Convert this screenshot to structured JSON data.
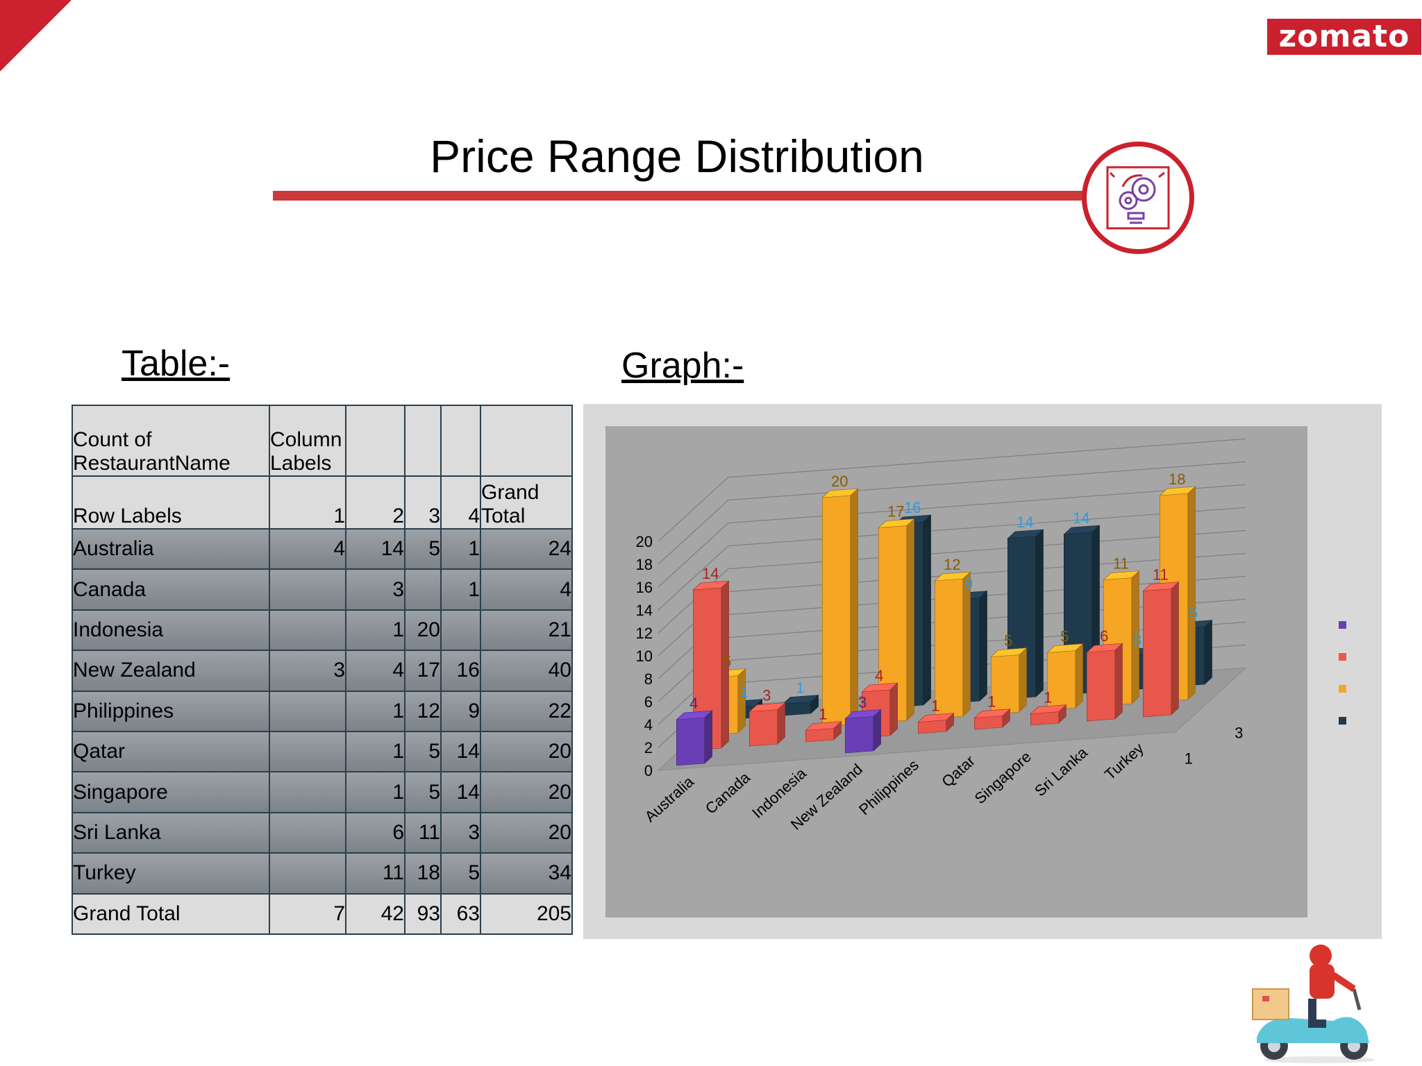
{
  "brand": {
    "name": "zomato",
    "color": "#cb202d"
  },
  "page": {
    "title": "Price Range Distribution"
  },
  "sections": {
    "table_label": "Table:-",
    "graph_label": "Graph:-"
  },
  "table": {
    "header": {
      "c0": "Count of RestaurantName",
      "c1": "Column Labels"
    },
    "subheader": {
      "c0": "Row Labels",
      "c1": "1",
      "c2": "2",
      "c3": "3",
      "c4": "4",
      "c5": "Grand Total"
    },
    "rows": [
      {
        "label": "Australia",
        "c1": "4",
        "c2": "14",
        "c3": "5",
        "c4": "1",
        "total": "24"
      },
      {
        "label": "Canada",
        "c1": "",
        "c2": "3",
        "c3": "",
        "c4": "1",
        "total": "4"
      },
      {
        "label": "Indonesia",
        "c1": "",
        "c2": "1",
        "c3": "20",
        "c4": "",
        "total": "21"
      },
      {
        "label": "New Zealand",
        "c1": "3",
        "c2": "4",
        "c3": "17",
        "c4": "16",
        "total": "40"
      },
      {
        "label": "Philippines",
        "c1": "",
        "c2": "1",
        "c3": "12",
        "c4": "9",
        "total": "22"
      },
      {
        "label": "Qatar",
        "c1": "",
        "c2": "1",
        "c3": "5",
        "c4": "14",
        "total": "20"
      },
      {
        "label": "Singapore",
        "c1": "",
        "c2": "1",
        "c3": "5",
        "c4": "14",
        "total": "20"
      },
      {
        "label": "Sri Lanka",
        "c1": "",
        "c2": "6",
        "c3": "11",
        "c4": "3",
        "total": "20"
      },
      {
        "label": "Turkey",
        "c1": "",
        "c2": "11",
        "c3": "18",
        "c4": "5",
        "total": "34"
      }
    ],
    "grand_total": {
      "label": "Grand Total",
      "c1": "7",
      "c2": "42",
      "c3": "93",
      "c4": "63",
      "total": "205"
    }
  },
  "chart_data": {
    "type": "bar",
    "style": "3d-clustered-column",
    "categories": [
      "Australia",
      "Canada",
      "Indonesia",
      "New Zealand",
      "Philippines",
      "Qatar",
      "Singapore",
      "Sri Lanka",
      "Turkey"
    ],
    "y_ticks": [
      "0",
      "2",
      "4",
      "6",
      "8",
      "10",
      "12",
      "14",
      "16",
      "18",
      "20"
    ],
    "ylim": [
      0,
      20
    ],
    "depth_labels": [
      "1",
      "3"
    ],
    "grid": true,
    "legend": "right",
    "series": [
      {
        "color": "#6a3fb5",
        "values": [
          4,
          null,
          null,
          3,
          null,
          null,
          null,
          null,
          null
        ],
        "labels": [
          "4",
          "",
          "",
          "3",
          "",
          "",
          "",
          "",
          ""
        ],
        "label_color": "#3d2a78"
      },
      {
        "color": "#e8574b",
        "values": [
          14,
          3,
          1,
          4,
          1,
          1,
          1,
          6,
          11
        ],
        "labels": [
          "14",
          "3",
          "1",
          "4",
          "1",
          "1",
          "1",
          "6",
          "11"
        ],
        "label_color": "#a82020"
      },
      {
        "color": "#f5a623",
        "values": [
          5,
          null,
          20,
          17,
          12,
          5,
          5,
          11,
          18
        ],
        "labels": [
          "5",
          "",
          "20",
          "17",
          "12",
          "5",
          "5",
          "11",
          "18"
        ],
        "label_color": "#8a5a00"
      },
      {
        "color": "#1f3a4d",
        "values": [
          1,
          1,
          null,
          16,
          9,
          14,
          14,
          3,
          5
        ],
        "labels": [
          "1",
          "1",
          "",
          "16",
          "9",
          "14",
          "14",
          "3",
          "5"
        ],
        "label_color": "#2f9be0"
      }
    ]
  }
}
